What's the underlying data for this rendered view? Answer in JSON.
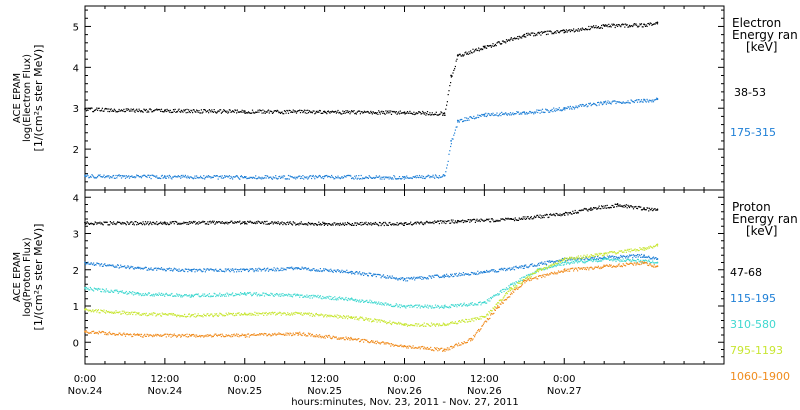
{
  "chart_data": [
    {
      "type": "scatter",
      "panel": "electron",
      "ylabel_lines": [
        "ACE EPAM",
        "log(Electron Flux)",
        "[1/(cm²s ster MeV)]"
      ],
      "ylim": [
        1.0,
        5.5
      ],
      "yticks": [
        2,
        3,
        4,
        5
      ],
      "legend_title_lines": [
        "Electron",
        "Energy ran",
        "[keV]"
      ],
      "series": [
        {
          "name": "38-53",
          "color": "#000000",
          "points": [
            [
              0,
              2.98
            ],
            [
              12,
              2.95
            ],
            [
              24,
              2.93
            ],
            [
              36,
              2.92
            ],
            [
              48,
              2.9
            ],
            [
              54,
              2.88
            ],
            [
              55,
              3.8
            ],
            [
              56,
              4.3
            ],
            [
              60,
              4.5
            ],
            [
              66,
              4.8
            ],
            [
              72,
              4.9
            ],
            [
              78,
              5.02
            ],
            [
              84,
              5.05
            ],
            [
              86,
              5.1
            ]
          ]
        },
        {
          "name": "175-315",
          "color": "#1e7fd6",
          "points": [
            [
              0,
              1.35
            ],
            [
              12,
              1.33
            ],
            [
              24,
              1.32
            ],
            [
              36,
              1.33
            ],
            [
              48,
              1.32
            ],
            [
              54,
              1.35
            ],
            [
              55,
              2.2
            ],
            [
              56,
              2.7
            ],
            [
              60,
              2.85
            ],
            [
              66,
              2.9
            ],
            [
              72,
              3.0
            ],
            [
              78,
              3.15
            ],
            [
              84,
              3.2
            ],
            [
              86,
              3.22
            ]
          ]
        }
      ]
    },
    {
      "type": "scatter",
      "panel": "proton",
      "ylabel_lines": [
        "ACE EPAM",
        "log(Proton Flux)",
        "[1/(cm²s ster MeV)]"
      ],
      "ylim": [
        -0.6,
        4.2
      ],
      "yticks": [
        0,
        1,
        2,
        3,
        4
      ],
      "legend_title_lines": [
        "Proton",
        "Energy ran",
        "[keV]"
      ],
      "series": [
        {
          "name": "47-68",
          "color": "#000000",
          "points": [
            [
              0,
              3.3
            ],
            [
              12,
              3.3
            ],
            [
              24,
              3.32
            ],
            [
              36,
              3.28
            ],
            [
              48,
              3.28
            ],
            [
              56,
              3.35
            ],
            [
              64,
              3.4
            ],
            [
              72,
              3.55
            ],
            [
              76,
              3.7
            ],
            [
              80,
              3.8
            ],
            [
              84,
              3.7
            ],
            [
              86,
              3.65
            ]
          ]
        },
        {
          "name": "115-195",
          "color": "#1e7fd6",
          "points": [
            [
              0,
              2.2
            ],
            [
              8,
              2.05
            ],
            [
              16,
              2.0
            ],
            [
              24,
              2.0
            ],
            [
              32,
              2.05
            ],
            [
              40,
              1.95
            ],
            [
              48,
              1.75
            ],
            [
              54,
              1.85
            ],
            [
              60,
              1.95
            ],
            [
              66,
              2.1
            ],
            [
              72,
              2.3
            ],
            [
              78,
              2.35
            ],
            [
              84,
              2.4
            ],
            [
              86,
              2.3
            ]
          ]
        },
        {
          "name": "310-580",
          "color": "#40d8d0",
          "points": [
            [
              0,
              1.5
            ],
            [
              8,
              1.35
            ],
            [
              16,
              1.3
            ],
            [
              24,
              1.35
            ],
            [
              32,
              1.3
            ],
            [
              40,
              1.2
            ],
            [
              48,
              1.0
            ],
            [
              54,
              1.0
            ],
            [
              60,
              1.1
            ],
            [
              64,
              1.6
            ],
            [
              68,
              2.0
            ],
            [
              72,
              2.2
            ],
            [
              78,
              2.3
            ],
            [
              84,
              2.25
            ],
            [
              86,
              2.2
            ]
          ]
        },
        {
          "name": "795-1193",
          "color": "#c8e632",
          "points": [
            [
              0,
              0.9
            ],
            [
              8,
              0.8
            ],
            [
              16,
              0.75
            ],
            [
              24,
              0.8
            ],
            [
              32,
              0.8
            ],
            [
              40,
              0.7
            ],
            [
              48,
              0.5
            ],
            [
              54,
              0.5
            ],
            [
              60,
              0.7
            ],
            [
              64,
              1.5
            ],
            [
              68,
              2.0
            ],
            [
              72,
              2.3
            ],
            [
              78,
              2.45
            ],
            [
              84,
              2.6
            ],
            [
              86,
              2.7
            ]
          ]
        },
        {
          "name": "1060-1900",
          "color": "#f08c1e",
          "points": [
            [
              0,
              0.3
            ],
            [
              8,
              0.2
            ],
            [
              16,
              0.2
            ],
            [
              24,
              0.2
            ],
            [
              32,
              0.25
            ],
            [
              40,
              0.1
            ],
            [
              48,
              -0.1
            ],
            [
              54,
              -0.2
            ],
            [
              58,
              0.1
            ],
            [
              62,
              1.0
            ],
            [
              66,
              1.7
            ],
            [
              72,
              2.0
            ],
            [
              78,
              2.1
            ],
            [
              84,
              2.2
            ],
            [
              86,
              2.1
            ]
          ]
        }
      ]
    }
  ],
  "x_axis": {
    "xlim": [
      0,
      96
    ],
    "ticks": [
      {
        "x": 0,
        "time": "0:00",
        "date": "Nov.24"
      },
      {
        "x": 12,
        "time": "12:00",
        "date": "Nov.24"
      },
      {
        "x": 24,
        "time": "0:00",
        "date": "Nov.25"
      },
      {
        "x": 36,
        "time": "12:00",
        "date": "Nov.25"
      },
      {
        "x": 48,
        "time": "0:00",
        "date": "Nov.26"
      },
      {
        "x": 60,
        "time": "12:00",
        "date": "Nov.26"
      },
      {
        "x": 72,
        "time": "0:00",
        "date": "Nov.27"
      }
    ],
    "xlabel": "hours:minutes, Nov. 23, 2011 - Nov. 27, 2011"
  }
}
